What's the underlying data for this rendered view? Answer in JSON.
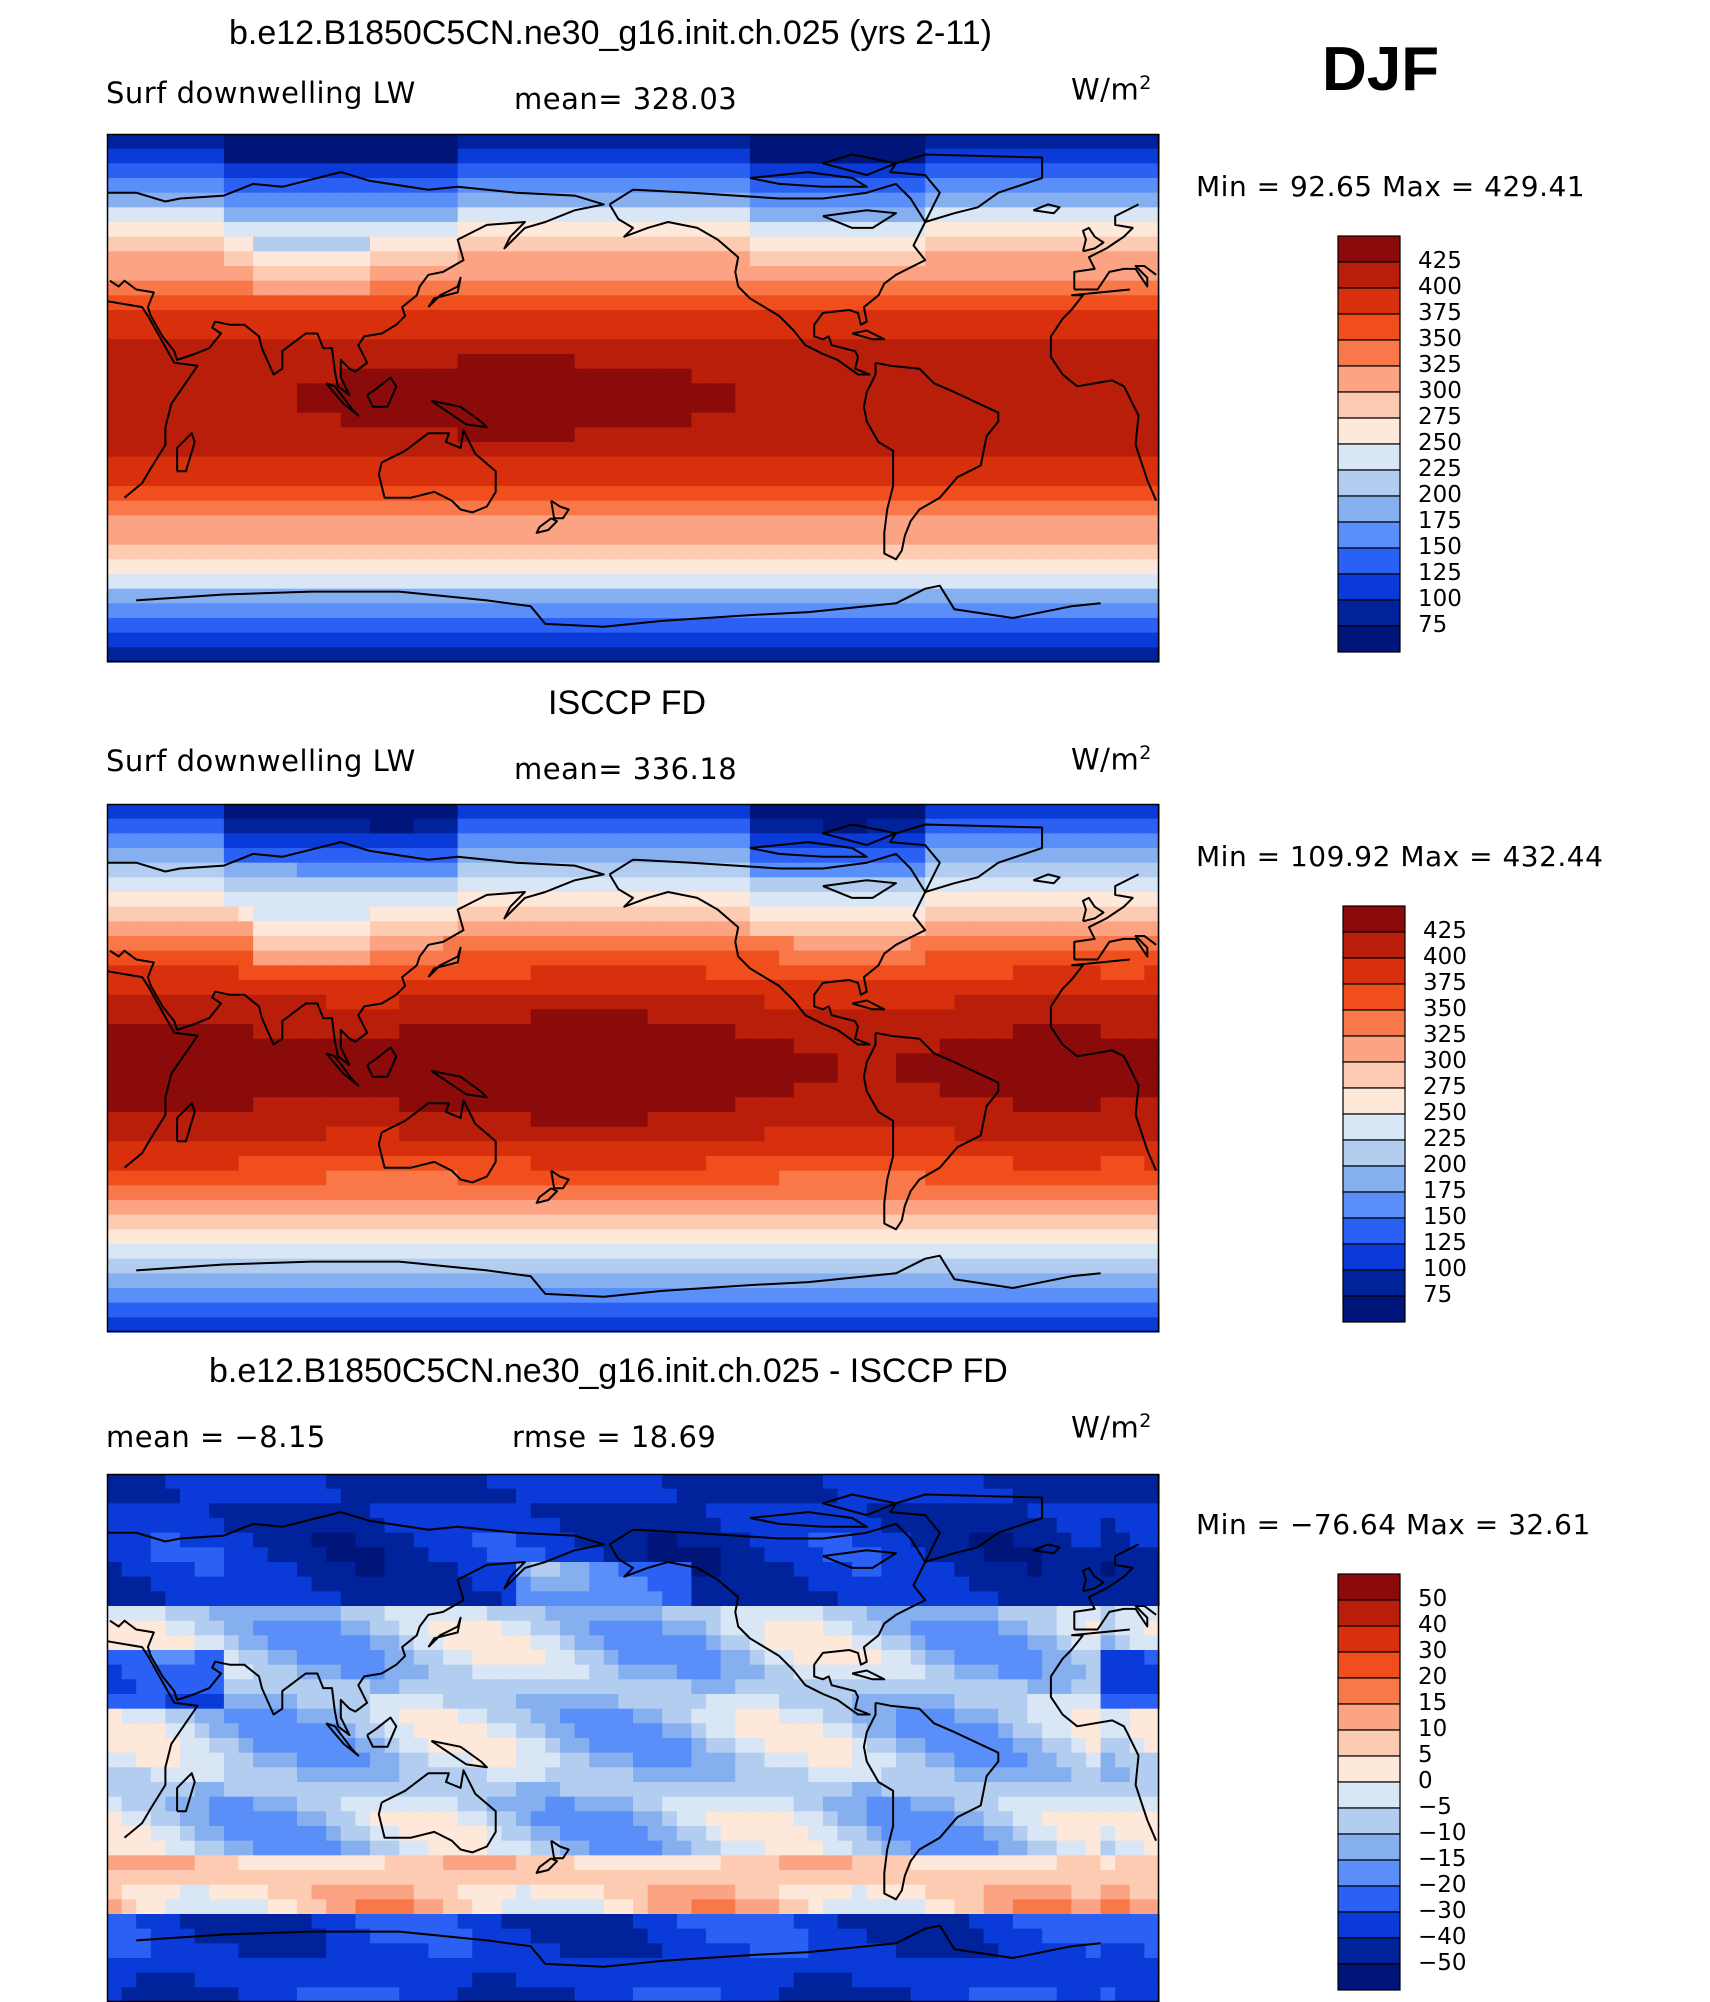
{
  "season": "DJF",
  "panels": [
    {
      "title": "b.e12.B1850C5CN.ne30_g16.init.ch.025 (yrs 2-11)",
      "left_label": "Surf  downwelling  LW",
      "center_label": "mean=  328.03",
      "units": "W/m²",
      "minmax": "Min  =    92.65  Max  =  429.41",
      "colorbar": [
        "425",
        "400",
        "375",
        "350",
        "325",
        "300",
        "275",
        "250",
        "225",
        "200",
        "175",
        "150",
        "125",
        "100",
        "75"
      ],
      "field": "model"
    },
    {
      "title": "ISCCP FD",
      "left_label": "Surf  downwelling  LW",
      "center_label": "mean=  336.18",
      "units": "W/m²",
      "minmax": "Min  =  109.92  Max  =  432.44",
      "colorbar": [
        "425",
        "400",
        "375",
        "350",
        "325",
        "300",
        "275",
        "250",
        "225",
        "200",
        "175",
        "150",
        "125",
        "100",
        "75"
      ],
      "field": "obs"
    },
    {
      "title": "b.e12.B1850C5CN.ne30_g16.init.ch.025 - ISCCP FD",
      "left_label": "mean  =    −8.15",
      "center_label": "rmse  =    18.69",
      "units": "W/m²",
      "minmax": "Min  =  −76.64  Max  =    32.61",
      "colorbar": [
        "50",
        "40",
        "30",
        "20",
        "15",
        "10",
        "5",
        "0",
        "−5",
        "−10",
        "−15",
        "−20",
        "−30",
        "−40",
        "−50"
      ],
      "field": "diff"
    }
  ],
  "colors": {
    "abs_scale": [
      "#8b0a0a",
      "#b81e0a",
      "#d8300c",
      "#f04e1c",
      "#f8784a",
      "#fba382",
      "#fdcbb2",
      "#fde8da",
      "#d8e6f6",
      "#b2cdf0",
      "#86aff0",
      "#5a8ef8",
      "#2b60f4",
      "#0a3ad8",
      "#00239c",
      "#00157a"
    ],
    "diff_scale": [
      "#8b0a0a",
      "#b81e0a",
      "#d8300c",
      "#f04e1c",
      "#f8784a",
      "#fba382",
      "#fdcbb2",
      "#fde8da",
      "#d8e6f6",
      "#b2cdf0",
      "#86aff0",
      "#5a8ef8",
      "#2b60f4",
      "#0a3ad8",
      "#00239c",
      "#00157a"
    ]
  }
}
